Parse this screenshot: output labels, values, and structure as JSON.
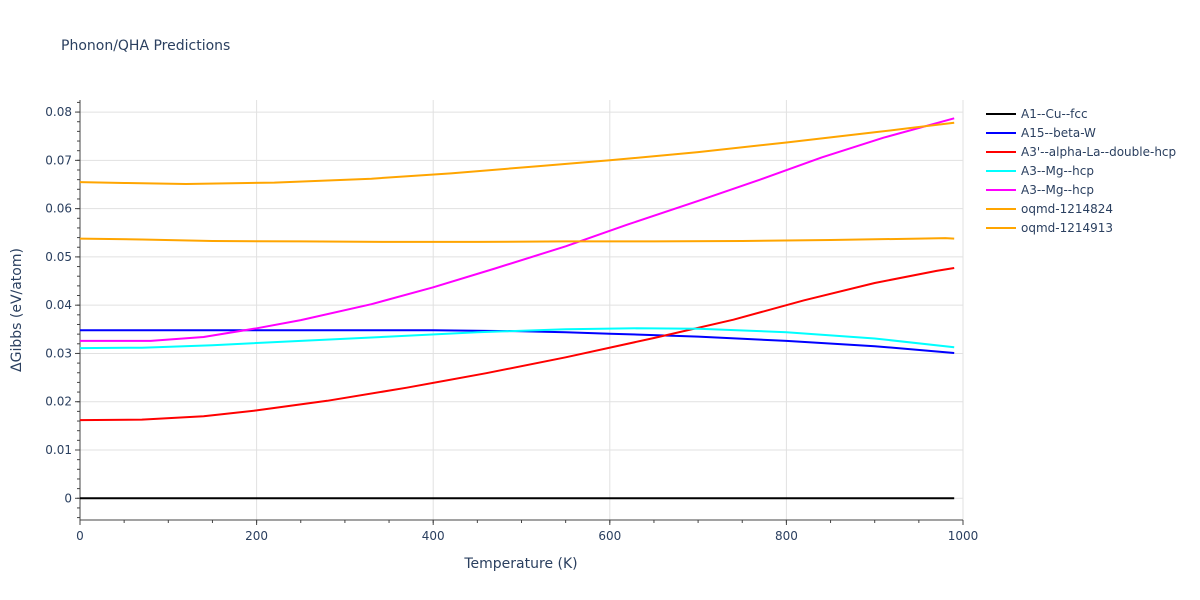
{
  "chart_data": {
    "type": "line",
    "title": "Phonon/QHA Predictions",
    "xlabel": "Temperature (K)",
    "ylabel": "ΔGibbs (eV/atom)",
    "xlim": [
      0,
      1000
    ],
    "ylim": [
      -0.0045,
      0.0825
    ],
    "xticks": [
      0,
      200,
      400,
      600,
      800,
      1000
    ],
    "xtick_labels": [
      "0",
      "200",
      "400",
      "600",
      "800",
      "1000"
    ],
    "yticks": [
      0,
      0.01,
      0.02,
      0.03,
      0.04,
      0.05,
      0.06,
      0.07,
      0.08
    ],
    "ytick_labels": [
      "0",
      "0.01",
      "0.02",
      "0.03",
      "0.04",
      "0.05",
      "0.06",
      "0.07",
      "0.08"
    ],
    "grid": true,
    "legend_position": "right",
    "series": [
      {
        "name": "A1--Cu--fcc",
        "color": "#000000",
        "x": [
          0,
          990
        ],
        "y": [
          0,
          0
        ]
      },
      {
        "name": "A15--beta-W",
        "color": "#0000ff",
        "x": [
          0,
          100,
          200,
          300,
          400,
          500,
          550,
          600,
          700,
          800,
          900,
          990
        ],
        "y": [
          0.0348,
          0.0348,
          0.0348,
          0.0348,
          0.0348,
          0.0346,
          0.0344,
          0.0341,
          0.0335,
          0.0326,
          0.0315,
          0.0301
        ]
      },
      {
        "name": "A3'--alpha-La--double-hcp",
        "color": "#ff0000",
        "x": [
          0,
          70,
          140,
          200,
          280,
          370,
          460,
          550,
          650,
          740,
          820,
          900,
          970,
          990
        ],
        "y": [
          0.0162,
          0.0163,
          0.017,
          0.0182,
          0.0202,
          0.0229,
          0.0259,
          0.0292,
          0.0332,
          0.037,
          0.041,
          0.0446,
          0.0471,
          0.0477
        ]
      },
      {
        "name": "A3--Mg--hcp",
        "color": "#00ffff",
        "x": [
          0,
          70,
          150,
          250,
          350,
          450,
          550,
          630,
          700,
          800,
          900,
          990
        ],
        "y": [
          0.0311,
          0.0312,
          0.0317,
          0.0326,
          0.0335,
          0.0344,
          0.035,
          0.0352,
          0.0351,
          0.0344,
          0.0331,
          0.0313
        ]
      },
      {
        "name": "A3--Mg--hcp",
        "color": "#ff00ff",
        "x": [
          0,
          80,
          140,
          200,
          250,
          330,
          400,
          470,
          550,
          620,
          700,
          770,
          840,
          910,
          990
        ],
        "y": [
          0.0326,
          0.0326,
          0.0334,
          0.0352,
          0.0369,
          0.0402,
          0.0437,
          0.0476,
          0.0522,
          0.0567,
          0.0616,
          0.066,
          0.0706,
          0.0747,
          0.0787
        ]
      },
      {
        "name": "oqmd-1214824",
        "color": "#ffa500",
        "x": [
          0,
          70,
          150,
          250,
          350,
          450,
          550,
          650,
          750,
          850,
          950,
          980,
          990
        ],
        "y": [
          0.0538,
          0.0536,
          0.0533,
          0.0532,
          0.0531,
          0.0531,
          0.0532,
          0.0532,
          0.0533,
          0.0535,
          0.0538,
          0.0539,
          0.0538
        ]
      },
      {
        "name": "oqmd-1214913",
        "color": "#ffa500",
        "x": [
          0,
          50,
          120,
          220,
          330,
          420,
          520,
          600,
          700,
          800,
          900,
          990
        ],
        "y": [
          0.0655,
          0.0653,
          0.0651,
          0.0654,
          0.0662,
          0.0673,
          0.0688,
          0.07,
          0.0717,
          0.0737,
          0.0758,
          0.0778
        ]
      }
    ]
  }
}
